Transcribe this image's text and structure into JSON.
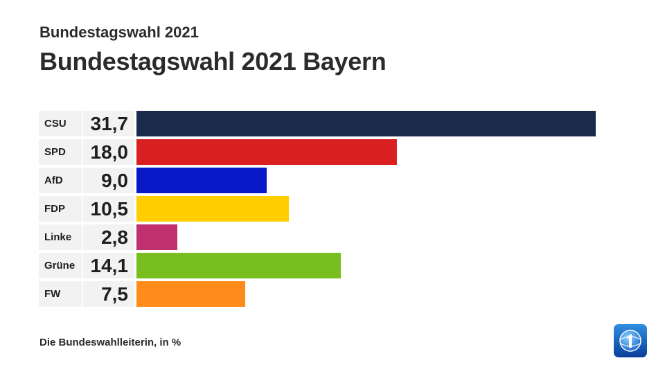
{
  "header": {
    "subtitle": "Bundestagswahl 2021",
    "title": "Bundestagswahl 2021 Bayern"
  },
  "footer": {
    "source": "Die Bundeswahlleiterin, in %"
  },
  "logo": {
    "icon": "ard-tagesschau-logo-icon"
  },
  "chart_data": {
    "type": "bar",
    "orientation": "horizontal",
    "title": "Bundestagswahl 2021 Bayern",
    "subtitle": "Bundestagswahl 2021",
    "unit": "%",
    "categories": [
      "CSU",
      "SPD",
      "AfD",
      "FDP",
      "Linke",
      "Grüne",
      "FW"
    ],
    "values": [
      31.7,
      18.0,
      9.0,
      10.5,
      2.8,
      14.1,
      7.5
    ],
    "value_labels": [
      "31,7",
      "18,0",
      "9,0",
      "10,5",
      "2,8",
      "14,1",
      "7,5"
    ],
    "colors": [
      "#1b2b4b",
      "#d91f1f",
      "#0a19c8",
      "#ffcd00",
      "#c0306e",
      "#78be1e",
      "#ff8c1a"
    ],
    "xlim": [
      0,
      31.7
    ],
    "grid": false,
    "legend": "none"
  }
}
